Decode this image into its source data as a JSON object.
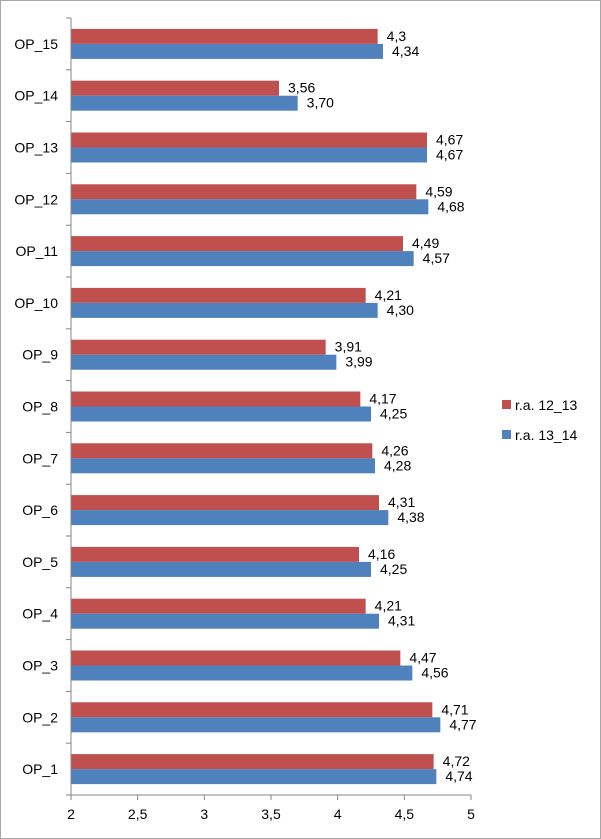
{
  "chart_data": {
    "type": "bar",
    "orientation": "horizontal",
    "categories": [
      "OP_1",
      "OP_2",
      "OP_3",
      "OP_4",
      "OP_5",
      "OP_6",
      "OP_7",
      "OP_8",
      "OP_9",
      "OP_10",
      "OP_11",
      "OP_12",
      "OP_13",
      "OP_14",
      "OP_15"
    ],
    "series": [
      {
        "name": "r.a. 12_13",
        "color": "#c0504d",
        "values": [
          4.72,
          4.71,
          4.47,
          4.21,
          4.16,
          4.31,
          4.26,
          4.17,
          3.91,
          4.21,
          4.49,
          4.59,
          4.67,
          3.56,
          4.3
        ],
        "labels": [
          "4,72",
          "4,71",
          "4,47",
          "4,21",
          "4,16",
          "4,31",
          "4,26",
          "4,17",
          "3,91",
          "4,21",
          "4,49",
          "4,59",
          "4,67",
          "3,56",
          "4,3"
        ]
      },
      {
        "name": "r.a. 13_14",
        "color": "#4f81bd",
        "values": [
          4.74,
          4.77,
          4.56,
          4.31,
          4.25,
          4.38,
          4.28,
          4.25,
          3.99,
          4.3,
          4.57,
          4.68,
          4.67,
          3.7,
          4.34
        ],
        "labels": [
          "4,74",
          "4,77",
          "4,56",
          "4,31",
          "4,25",
          "4,38",
          "4,28",
          "4,25",
          "3,99",
          "4,30",
          "4,57",
          "4,68",
          "4,67",
          "3,70",
          "4,34"
        ]
      }
    ],
    "xlim": [
      2,
      5
    ],
    "xticks": [
      2,
      2.5,
      3,
      3.5,
      4,
      4.5,
      5
    ],
    "xtick_labels": [
      "2",
      "2,5",
      "3",
      "3,5",
      "4",
      "4,5",
      "5"
    ],
    "grid": false,
    "legend": "right",
    "title": "",
    "xlabel": "",
    "ylabel": ""
  }
}
